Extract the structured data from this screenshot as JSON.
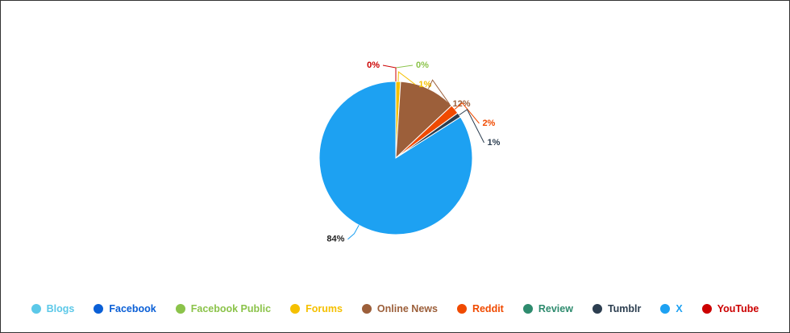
{
  "chart_data": {
    "type": "pie",
    "categories": [
      "Blogs",
      "Facebook",
      "Facebook Public",
      "Forums",
      "Online News",
      "Reddit",
      "Review",
      "Tumblr",
      "X",
      "YouTube"
    ],
    "values": [
      null,
      null,
      0,
      1,
      12,
      2,
      null,
      1,
      84,
      0
    ],
    "value_labels": [
      null,
      null,
      "0%",
      "1%",
      "12%",
      "2%",
      null,
      "1%",
      "84%",
      "0%"
    ],
    "colors": [
      "#5bc8e8",
      "#0a5fd6",
      "#8bc34a",
      "#f5c000",
      "#9c5f3a",
      "#f04a00",
      "#2e8b6e",
      "#2c3e50",
      "#1da1f2",
      "#cc0000"
    ],
    "legend": "bottom"
  }
}
